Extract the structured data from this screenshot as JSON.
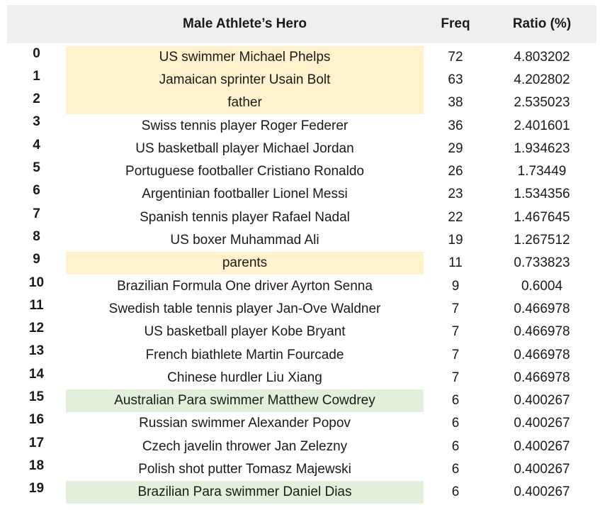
{
  "header": {
    "hero": "Male Athlete’s Hero",
    "freq": "Freq",
    "ratio": "Ratio (%)"
  },
  "colors": {
    "header_bg": "#efefef",
    "highlight_yellow": "#fff2cc",
    "highlight_green": "#e2efda"
  },
  "rows": [
    {
      "idx": "0",
      "hero": "US swimmer Michael Phelps",
      "freq": "72",
      "ratio": "4.803202",
      "highlight": "yellow"
    },
    {
      "idx": "1",
      "hero": "Jamaican sprinter Usain Bolt",
      "freq": "63",
      "ratio": "4.202802",
      "highlight": "yellow"
    },
    {
      "idx": "2",
      "hero": "father",
      "freq": "38",
      "ratio": "2.535023",
      "highlight": "yellow"
    },
    {
      "idx": "3",
      "hero": "Swiss tennis player Roger Federer",
      "freq": "36",
      "ratio": "2.401601",
      "highlight": ""
    },
    {
      "idx": "4",
      "hero": "US basketball player Michael Jordan",
      "freq": "29",
      "ratio": "1.934623",
      "highlight": ""
    },
    {
      "idx": "5",
      "hero": "Portuguese footballer Cristiano Ronaldo",
      "freq": "26",
      "ratio": "1.73449",
      "highlight": ""
    },
    {
      "idx": "6",
      "hero": "Argentinian footballer Lionel Messi",
      "freq": "23",
      "ratio": "1.534356",
      "highlight": ""
    },
    {
      "idx": "7",
      "hero": "Spanish tennis player Rafael Nadal",
      "freq": "22",
      "ratio": "1.467645",
      "highlight": ""
    },
    {
      "idx": "8",
      "hero": "US boxer Muhammad Ali",
      "freq": "19",
      "ratio": "1.267512",
      "highlight": ""
    },
    {
      "idx": "9",
      "hero": "parents",
      "freq": "11",
      "ratio": "0.733823",
      "highlight": "yellow"
    },
    {
      "idx": "10",
      "hero": "Brazilian Formula One driver Ayrton Senna",
      "freq": "9",
      "ratio": "0.6004",
      "highlight": ""
    },
    {
      "idx": "11",
      "hero": "Swedish table tennis player Jan-Ove Waldner",
      "freq": "7",
      "ratio": "0.466978",
      "highlight": ""
    },
    {
      "idx": "12",
      "hero": "US basketball player Kobe Bryant",
      "freq": "7",
      "ratio": "0.466978",
      "highlight": ""
    },
    {
      "idx": "13",
      "hero": "French biathlete Martin Fourcade",
      "freq": "7",
      "ratio": "0.466978",
      "highlight": ""
    },
    {
      "idx": "14",
      "hero": "Chinese hurdler Liu Xiang",
      "freq": "7",
      "ratio": "0.466978",
      "highlight": ""
    },
    {
      "idx": "15",
      "hero": "Australian Para swimmer Matthew Cowdrey",
      "freq": "6",
      "ratio": "0.400267",
      "highlight": "green"
    },
    {
      "idx": "16",
      "hero": "Russian swimmer Alexander Popov",
      "freq": "6",
      "ratio": "0.400267",
      "highlight": ""
    },
    {
      "idx": "17",
      "hero": "Czech javelin thrower Jan Zelezny",
      "freq": "6",
      "ratio": "0.400267",
      "highlight": ""
    },
    {
      "idx": "18",
      "hero": "Polish shot putter Tomasz Majewski",
      "freq": "6",
      "ratio": "0.400267",
      "highlight": ""
    },
    {
      "idx": "19",
      "hero": "Brazilian Para swimmer Daniel Dias",
      "freq": "6",
      "ratio": "0.400267",
      "highlight": "green"
    }
  ]
}
